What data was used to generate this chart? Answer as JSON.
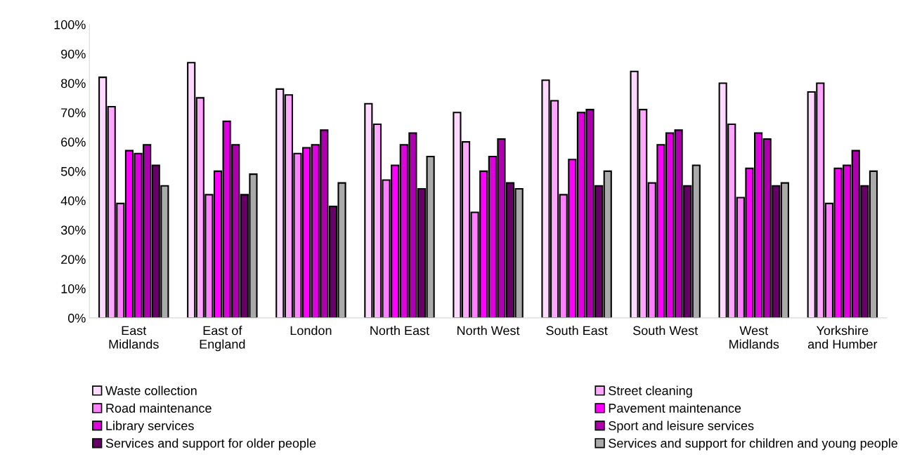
{
  "chart_data": {
    "type": "bar",
    "categories": [
      "East\nMidlands",
      "East of\nEngland",
      "London",
      "North East",
      "North West",
      "South East",
      "South West",
      "West\nMidlands",
      "Yorkshire\nand Humber"
    ],
    "series": [
      {
        "name": "Waste collection",
        "color": "#ffd9ff",
        "values": [
          82,
          87,
          78,
          73,
          70,
          81,
          84,
          80,
          77
        ]
      },
      {
        "name": "Street cleaning",
        "color": "#ffa6ff",
        "values": [
          72,
          75,
          76,
          66,
          60,
          74,
          71,
          66,
          80
        ]
      },
      {
        "name": "Road maintenance",
        "color": "#ff80ff",
        "values": [
          39,
          42,
          56,
          47,
          36,
          42,
          46,
          41,
          39
        ]
      },
      {
        "name": "Pavement maintenance",
        "color": "#ff00ff",
        "values": [
          57,
          50,
          58,
          52,
          50,
          54,
          59,
          51,
          51
        ]
      },
      {
        "name": "Library services",
        "color": "#e000e0",
        "values": [
          56,
          67,
          59,
          59,
          55,
          70,
          63,
          63,
          52
        ]
      },
      {
        "name": "Sport and leisure services",
        "color": "#ad00ad",
        "values": [
          59,
          59,
          64,
          63,
          61,
          71,
          64,
          61,
          57
        ]
      },
      {
        "name": "Services and support for older people",
        "color": "#660066",
        "values": [
          52,
          42,
          38,
          44,
          46,
          45,
          45,
          45,
          45
        ]
      },
      {
        "name": "Services and support for children and young people",
        "color": "#aaaaaa",
        "values": [
          45,
          49,
          46,
          55,
          44,
          50,
          52,
          46,
          50
        ]
      }
    ],
    "ylim": [
      0,
      100
    ],
    "yticks": [
      {
        "value": 0,
        "label": "0%"
      },
      {
        "value": 10,
        "label": "10%"
      },
      {
        "value": 20,
        "label": "20%"
      },
      {
        "value": 30,
        "label": "30%"
      },
      {
        "value": 40,
        "label": "40%"
      },
      {
        "value": 50,
        "label": "50%"
      },
      {
        "value": 60,
        "label": "60%"
      },
      {
        "value": 70,
        "label": "70%"
      },
      {
        "value": 80,
        "label": "80%"
      },
      {
        "value": 90,
        "label": "90%"
      },
      {
        "value": 100,
        "label": "100%"
      }
    ],
    "grid": false,
    "legend": "bottom"
  }
}
